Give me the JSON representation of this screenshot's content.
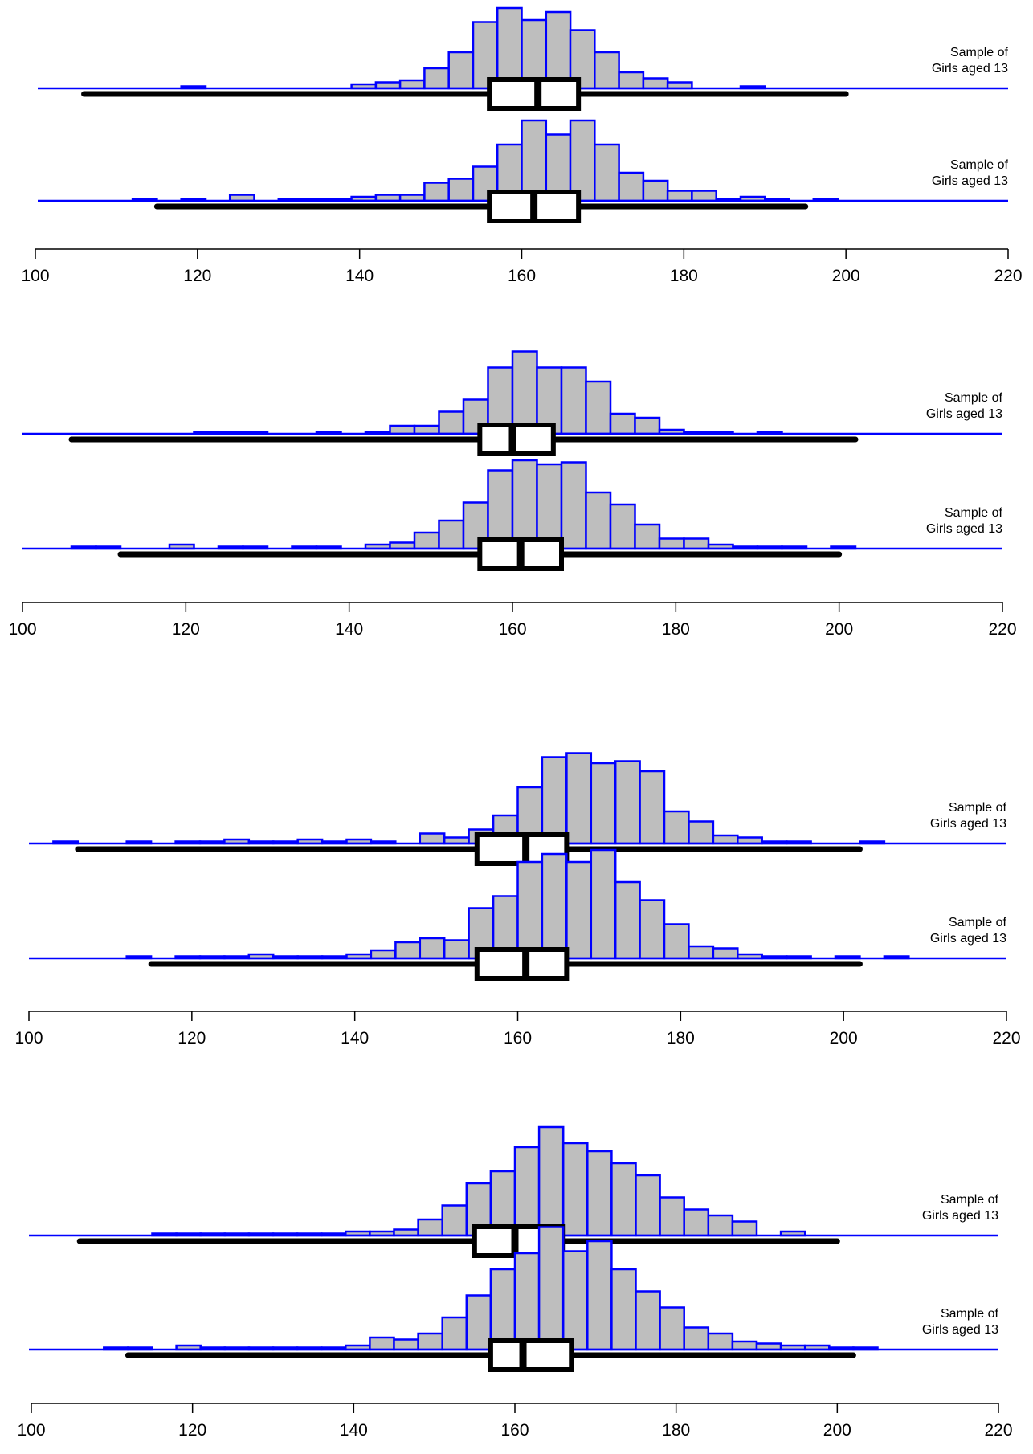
{
  "page": {
    "background": "#ffffff"
  },
  "colors": {
    "axis_line": "#0000ff",
    "bar_fill": "#bebebe",
    "bar_stroke": "#0000ff",
    "box": "#000000",
    "text": "#000000"
  },
  "chart_data": [
    {
      "type": "histogram-boxplot",
      "xlim": [
        100,
        220
      ],
      "ticks": [
        100,
        120,
        140,
        160,
        180,
        200,
        220
      ],
      "tick_labels": [
        "100",
        "120",
        "140",
        "160",
        "180",
        "200",
        "220"
      ],
      "bin_start": 100,
      "bin_width": 3,
      "series": [
        {
          "label_line1": "Sample of",
          "label_line2": "Girls aged 13",
          "counts": [
            0,
            0,
            0,
            0,
            0,
            0,
            1,
            0,
            0,
            0,
            0,
            0,
            0,
            2,
            3,
            4,
            10,
            18,
            33,
            40,
            34,
            38,
            29,
            18,
            8,
            5,
            3,
            0,
            0,
            1,
            0,
            0,
            0,
            0,
            0,
            0,
            0,
            0,
            0,
            0
          ],
          "box": {
            "whisker_low": 106,
            "q1": 156,
            "median": 162,
            "q3": 167,
            "whisker_high": 200
          }
        },
        {
          "label_line1": "Sample of",
          "label_line2": "Girls aged 13",
          "counts": [
            0,
            0,
            0,
            0,
            1,
            0,
            1,
            0,
            3,
            0,
            1,
            1,
            1,
            2,
            3,
            3,
            9,
            11,
            17,
            28,
            40,
            33,
            40,
            28,
            14,
            10,
            5,
            5,
            1,
            2,
            1,
            0,
            1,
            0,
            0,
            0,
            0,
            0,
            0,
            0
          ],
          "box": {
            "whisker_low": 115,
            "q1": 156,
            "median": 161.5,
            "q3": 167,
            "whisker_high": 195
          }
        }
      ]
    },
    {
      "type": "histogram-boxplot",
      "xlim": [
        100,
        220
      ],
      "ticks": [
        100,
        120,
        140,
        160,
        180,
        200,
        220
      ],
      "tick_labels": [
        "100",
        "120",
        "140",
        "160",
        "180",
        "200",
        "220"
      ],
      "bin_start": 100,
      "bin_width": 3,
      "series": [
        {
          "label_line1": "Sample of",
          "label_line2": "Girls aged 13",
          "counts": [
            0,
            0,
            0,
            0,
            0,
            0,
            0,
            1,
            1,
            1,
            0,
            0,
            1,
            0,
            1,
            4,
            4,
            11,
            17,
            33,
            41,
            33,
            33,
            26,
            10,
            8,
            2,
            1,
            1,
            0,
            1,
            0,
            0,
            0,
            0,
            0,
            0,
            0,
            0,
            0
          ],
          "box": {
            "whisker_low": 106,
            "q1": 156,
            "median": 160,
            "q3": 165,
            "whisker_high": 202
          }
        },
        {
          "label_line1": "Sample of",
          "label_line2": "Girls aged 13",
          "counts": [
            0,
            0,
            1,
            1,
            0,
            0,
            2,
            0,
            1,
            1,
            0,
            1,
            1,
            0,
            2,
            3,
            8,
            14,
            23,
            39,
            44,
            42,
            43,
            28,
            22,
            12,
            5,
            5,
            2,
            1,
            1,
            1,
            0,
            1,
            0,
            0,
            0,
            0,
            0,
            0
          ],
          "box": {
            "whisker_low": 112,
            "q1": 156,
            "median": 161,
            "q3": 166,
            "whisker_high": 200
          }
        }
      ]
    },
    {
      "type": "histogram-boxplot",
      "xlim": [
        100,
        220
      ],
      "ticks": [
        100,
        120,
        140,
        160,
        180,
        200,
        220
      ],
      "tick_labels": [
        "100",
        "120",
        "140",
        "160",
        "180",
        "200",
        "220"
      ],
      "bin_start": 100,
      "bin_width": 3,
      "series": [
        {
          "label_line1": "Sample of",
          "label_line2": "Girls aged 13",
          "counts": [
            0,
            1,
            0,
            0,
            1,
            0,
            1,
            1,
            2,
            1,
            1,
            2,
            1,
            2,
            1,
            0,
            5,
            3,
            7,
            14,
            28,
            43,
            45,
            40,
            41,
            36,
            16,
            11,
            4,
            3,
            1,
            1,
            0,
            0,
            1,
            0,
            0,
            0,
            0,
            0
          ],
          "box": {
            "whisker_low": 106,
            "q1": 155,
            "median": 161,
            "q3": 166,
            "whisker_high": 202
          }
        },
        {
          "label_line1": "Sample of",
          "label_line2": "Girls aged 13",
          "counts": [
            0,
            0,
            0,
            0,
            1,
            0,
            1,
            1,
            1,
            2,
            1,
            1,
            1,
            2,
            4,
            8,
            10,
            9,
            25,
            31,
            48,
            52,
            48,
            54,
            38,
            29,
            17,
            6,
            5,
            2,
            1,
            1,
            0,
            1,
            0,
            1,
            0,
            0,
            0,
            0
          ],
          "box": {
            "whisker_low": 115,
            "q1": 155,
            "median": 161,
            "q3": 166,
            "whisker_high": 202
          }
        }
      ]
    },
    {
      "type": "histogram-boxplot",
      "xlim": [
        100,
        220
      ],
      "ticks": [
        100,
        120,
        140,
        160,
        180,
        200,
        220
      ],
      "tick_labels": [
        "100",
        "120",
        "140",
        "160",
        "180",
        "200",
        "220"
      ],
      "bin_start": 100,
      "bin_width": 3,
      "series": [
        {
          "label_line1": "Sample of",
          "label_line2": "Girls aged 13",
          "counts": [
            0,
            0,
            0,
            0,
            0,
            1,
            1,
            1,
            1,
            1,
            1,
            1,
            1,
            2,
            2,
            3,
            8,
            15,
            26,
            32,
            44,
            54,
            46,
            42,
            36,
            30,
            19,
            13,
            10,
            7,
            0,
            2,
            0,
            0,
            0,
            0,
            0,
            0,
            0,
            0
          ],
          "box": {
            "whisker_low": 106,
            "q1": 155,
            "median": 160,
            "q3": 166,
            "whisker_high": 200
          }
        },
        {
          "label_line1": "Sample of",
          "label_line2": "Girls aged 13",
          "counts": [
            0,
            0,
            0,
            1,
            1,
            0,
            2,
            1,
            1,
            1,
            1,
            1,
            1,
            2,
            6,
            5,
            8,
            16,
            27,
            40,
            48,
            61,
            49,
            54,
            40,
            29,
            21,
            11,
            8,
            4,
            3,
            2,
            2,
            1,
            1,
            0,
            0,
            0,
            0,
            0
          ],
          "box": {
            "whisker_low": 112,
            "q1": 157,
            "median": 161,
            "q3": 167,
            "whisker_high": 202
          }
        }
      ]
    }
  ]
}
